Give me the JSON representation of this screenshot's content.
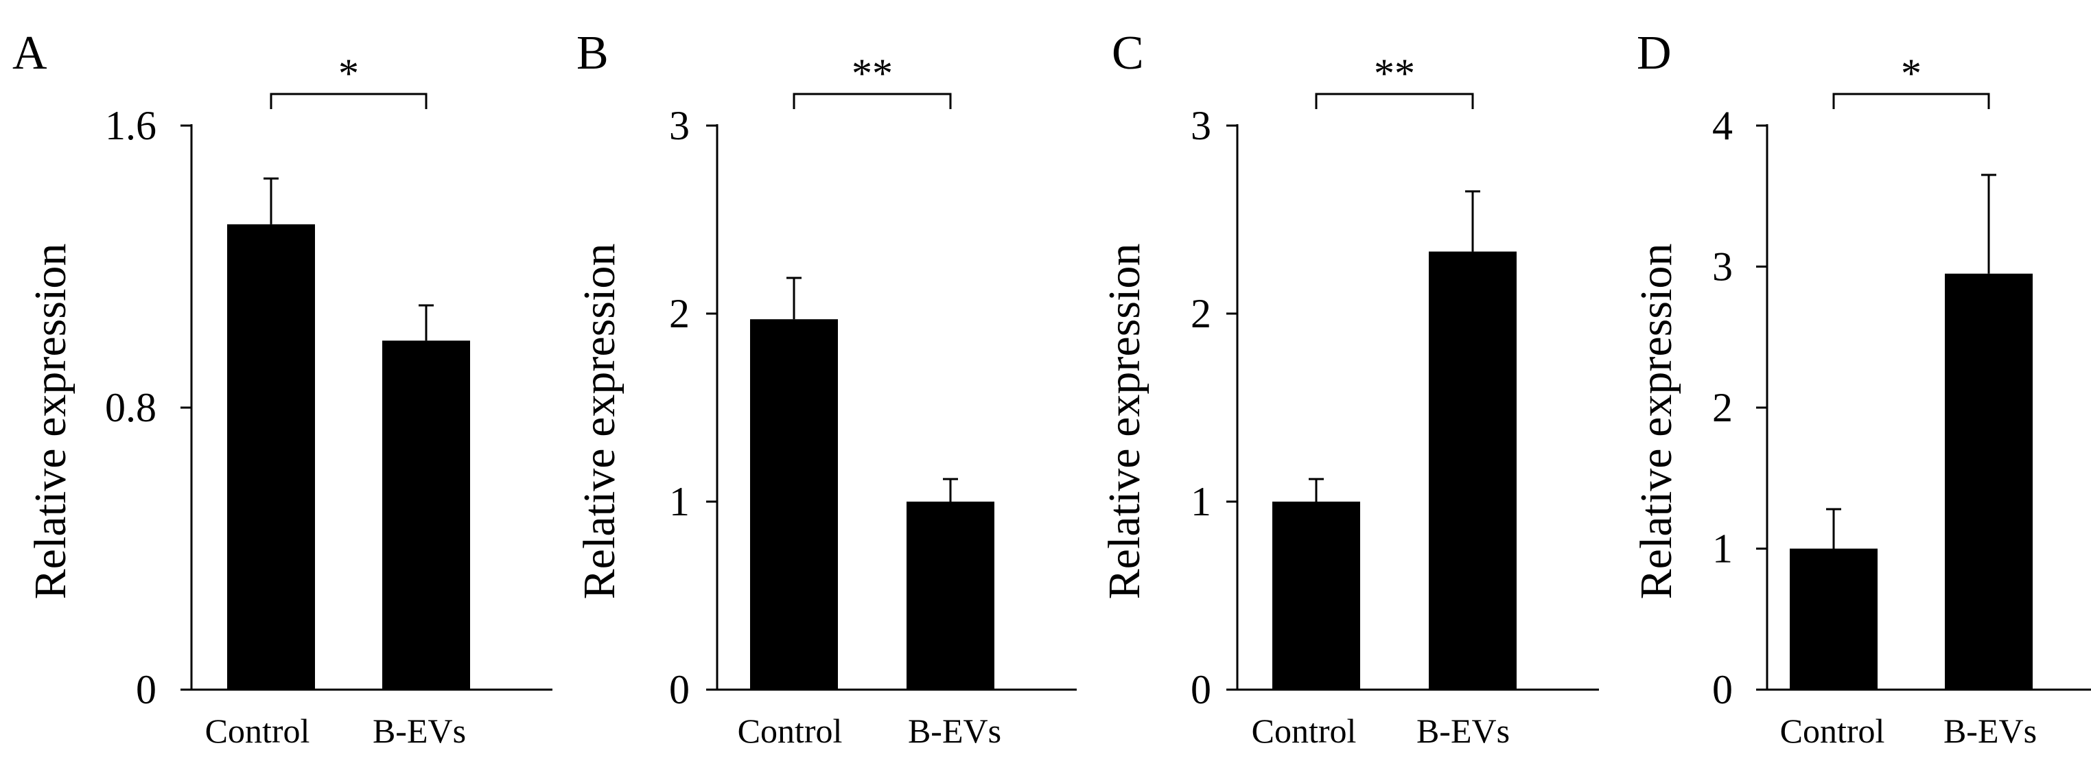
{
  "chart_data": [
    {
      "type": "bar",
      "panel": "A",
      "ylabel": "Relative expression",
      "categories": [
        "Control",
        "B-EVs"
      ],
      "values": [
        1.32,
        0.99
      ],
      "errors": [
        0.13,
        0.1
      ],
      "ylim": [
        0,
        1.6
      ],
      "yticks": [
        0,
        0.8,
        1.6
      ],
      "ytick_labels": [
        "0",
        "0.8",
        "1.6"
      ],
      "significance": "*"
    },
    {
      "type": "bar",
      "panel": "B",
      "ylabel": "Relative expression",
      "categories": [
        "Control",
        "B-EVs"
      ],
      "values": [
        1.97,
        1.0
      ],
      "errors": [
        0.22,
        0.12
      ],
      "ylim": [
        0,
        3
      ],
      "yticks": [
        0,
        1,
        2,
        3
      ],
      "ytick_labels": [
        "0",
        "1",
        "2",
        "3"
      ],
      "significance": "**"
    },
    {
      "type": "bar",
      "panel": "C",
      "ylabel": "Relative expression",
      "categories": [
        "Control",
        "B-EVs"
      ],
      "values": [
        1.0,
        2.33
      ],
      "errors": [
        0.12,
        0.32
      ],
      "ylim": [
        0,
        3
      ],
      "yticks": [
        0,
        1,
        2,
        3
      ],
      "ytick_labels": [
        "0",
        "1",
        "2",
        "3"
      ],
      "significance": "**"
    },
    {
      "type": "bar",
      "panel": "D",
      "ylabel": "Relative expression",
      "categories": [
        "Control",
        "B-EVs"
      ],
      "values": [
        1.0,
        2.95
      ],
      "errors": [
        0.28,
        0.7
      ],
      "ylim": [
        0,
        4
      ],
      "yticks": [
        0,
        1,
        2,
        3,
        4
      ],
      "ytick_labels": [
        "0",
        "1",
        "2",
        "3",
        "4"
      ],
      "significance": "*"
    }
  ]
}
